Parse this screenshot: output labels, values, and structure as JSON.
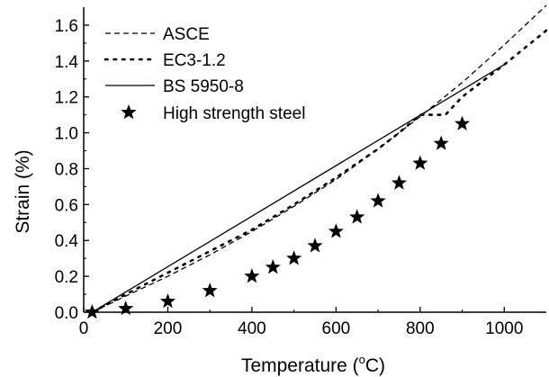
{
  "chart_data": {
    "type": "line",
    "xlabel_main": "Temperature (",
    "xlabel_sup": "o",
    "xlabel_end": "C)",
    "ylabel": "Strain (%)",
    "xlim": [
      0,
      1100
    ],
    "ylim": [
      0,
      1.7
    ],
    "x_ticks": [
      0,
      200,
      400,
      600,
      800,
      1000
    ],
    "x_tick_labels": [
      "0",
      "200",
      "400",
      "600",
      "800",
      "1000"
    ],
    "y_ticks": [
      0,
      0.2,
      0.4,
      0.6,
      0.8,
      1.0,
      1.2,
      1.4,
      1.6
    ],
    "y_tick_labels": [
      "0.0",
      "0.2",
      "0.4",
      "0.6",
      "0.8",
      "1.0",
      "1.2",
      "1.4",
      "1.6"
    ],
    "grid": false,
    "legend_position": "top-left",
    "series": [
      {
        "name": "ASCE",
        "style": "dashed",
        "x": [
          20,
          100,
          200,
          300,
          400,
          500,
          600,
          700,
          800,
          900,
          1000,
          1100
        ],
        "y": [
          0.0,
          0.09,
          0.2,
          0.32,
          0.45,
          0.59,
          0.74,
          0.91,
          1.09,
          1.28,
          1.49,
          1.71
        ]
      },
      {
        "name": "EC3-1.2",
        "style": "dotted",
        "x": [
          20,
          100,
          200,
          300,
          400,
          500,
          600,
          700,
          750,
          800,
          860,
          900,
          1000,
          1100
        ],
        "y": [
          0.0,
          0.1,
          0.22,
          0.34,
          0.46,
          0.6,
          0.75,
          0.91,
          1.0,
          1.1,
          1.1,
          1.2,
          1.38,
          1.57
        ]
      },
      {
        "name": "BS 5950-8",
        "style": "solid",
        "x": [
          20,
          1000
        ],
        "y": [
          0.0,
          1.38
        ]
      },
      {
        "name": "High strength steel",
        "style": "star",
        "x": [
          20,
          100,
          200,
          300,
          400,
          450,
          500,
          550,
          600,
          650,
          700,
          750,
          800,
          850,
          900
        ],
        "y": [
          0.0,
          0.02,
          0.06,
          0.12,
          0.2,
          0.25,
          0.3,
          0.37,
          0.45,
          0.53,
          0.62,
          0.72,
          0.83,
          0.94,
          1.05
        ]
      }
    ]
  }
}
